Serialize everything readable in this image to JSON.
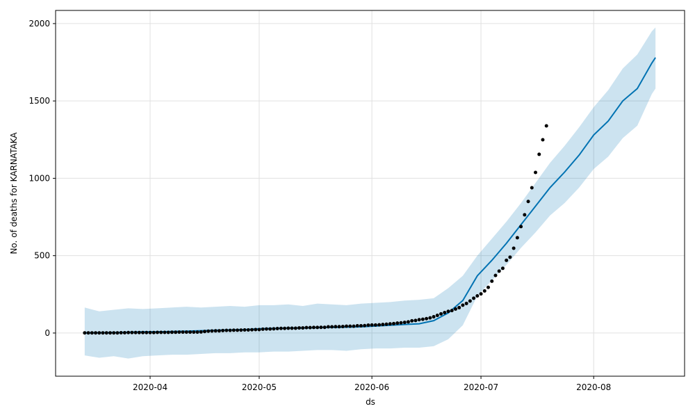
{
  "chart_data": {
    "type": "forecast",
    "xlabel": "ds",
    "ylabel": "No. of deaths for KARNATAKA",
    "xlim": [
      "2020-03-06",
      "2020-08-26"
    ],
    "xticks": [
      {
        "value": "2020-04-01",
        "label": "2020-04"
      },
      {
        "value": "2020-05-01",
        "label": "2020-05"
      },
      {
        "value": "2020-06-01",
        "label": "2020-06"
      },
      {
        "value": "2020-07-01",
        "label": "2020-07"
      },
      {
        "value": "2020-08-01",
        "label": "2020-08"
      }
    ],
    "ylim": [
      -279,
      2085
    ],
    "yticks": [
      0,
      500,
      1000,
      1500,
      2000
    ],
    "grid": true,
    "series": [
      {
        "type": "scatter",
        "color": "#000000",
        "start": "2020-03-14",
        "values": [
          1,
          1,
          1,
          1,
          1,
          1,
          1,
          1,
          1,
          1,
          2,
          2,
          3,
          3,
          3,
          3,
          3,
          3,
          3,
          3,
          4,
          4,
          4,
          4,
          5,
          5,
          6,
          6,
          6,
          6,
          6,
          6,
          7,
          10,
          12,
          13,
          14,
          14,
          16,
          17,
          17,
          18,
          18,
          19,
          20,
          20,
          21,
          22,
          22,
          25,
          26,
          26,
          27,
          29,
          30,
          30,
          31,
          31,
          31,
          33,
          33,
          35,
          35,
          36,
          36,
          37,
          37,
          40,
          40,
          41,
          41,
          42,
          44,
          44,
          44,
          47,
          47,
          48,
          51,
          52,
          52,
          53,
          55,
          57,
          59,
          61,
          64,
          66,
          69,
          72,
          79,
          81,
          86,
          89,
          93,
          98,
          105,
          114,
          124,
          132,
          140,
          145,
          155,
          164,
          180,
          191,
          207,
          225,
          240,
          253,
          272,
          295,
          335,
          372,
          400,
          418,
          470,
          490,
          548,
          616,
          688,
          764,
          850,
          939,
          1038,
          1155,
          1249,
          1339
        ]
      },
      {
        "type": "line",
        "color": "#0072B2",
        "x": [
          "2020-03-14",
          "2020-03-18",
          "2020-03-22",
          "2020-03-26",
          "2020-03-30",
          "2020-04-03",
          "2020-04-07",
          "2020-04-11",
          "2020-04-15",
          "2020-04-19",
          "2020-04-23",
          "2020-04-27",
          "2020-05-01",
          "2020-05-05",
          "2020-05-09",
          "2020-05-13",
          "2020-05-17",
          "2020-05-21",
          "2020-05-25",
          "2020-05-29",
          "2020-06-02",
          "2020-06-06",
          "2020-06-10",
          "2020-06-14",
          "2020-06-18",
          "2020-06-22",
          "2020-06-26",
          "2020-06-30",
          "2020-07-04",
          "2020-07-08",
          "2020-07-12",
          "2020-07-16",
          "2020-07-20",
          "2020-07-24",
          "2020-07-28",
          "2020-08-01",
          "2020-08-05",
          "2020-08-09",
          "2020-08-13",
          "2020-08-17",
          "2020-08-18"
        ],
        "values": [
          0,
          2,
          3,
          5,
          8,
          8,
          10,
          12,
          15,
          18,
          20,
          22,
          28,
          30,
          32,
          32,
          35,
          36,
          38,
          40,
          45,
          50,
          55,
          60,
          80,
          130,
          210,
          370,
          470,
          580,
          700,
          820,
          940,
          1040,
          1150,
          1280,
          1370,
          1500,
          1580,
          1745,
          1780
        ],
        "lower": [
          -145,
          -160,
          -150,
          -165,
          -150,
          -145,
          -140,
          -140,
          -135,
          -130,
          -130,
          -125,
          -125,
          -120,
          -120,
          -115,
          -110,
          -110,
          -115,
          -105,
          -100,
          -100,
          -95,
          -95,
          -85,
          -40,
          50,
          240,
          340,
          440,
          550,
          650,
          760,
          840,
          940,
          1060,
          1140,
          1260,
          1340,
          1545,
          1580
        ],
        "upper": [
          165,
          140,
          150,
          160,
          155,
          160,
          165,
          170,
          165,
          170,
          175,
          170,
          180,
          180,
          185,
          175,
          190,
          185,
          180,
          190,
          195,
          200,
          210,
          215,
          225,
          290,
          370,
          500,
          610,
          720,
          840,
          970,
          1100,
          1210,
          1330,
          1460,
          1570,
          1710,
          1800,
          1950,
          1975
        ]
      }
    ]
  }
}
